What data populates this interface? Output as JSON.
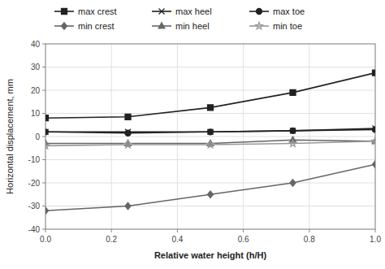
{
  "chart_data": {
    "type": "line",
    "xlabel": "Relative water height (h/H)",
    "ylabel": "Horizontal displacement, mm",
    "x": [
      0,
      0.25,
      0.5,
      0.75,
      1.0
    ],
    "series": [
      {
        "name": "max crest",
        "color": "#222222",
        "marker": "square",
        "values": [
          8,
          8.5,
          12.5,
          19,
          27.5
        ]
      },
      {
        "name": "max heel",
        "color": "#222222",
        "marker": "x",
        "values": [
          2,
          2,
          2,
          2.5,
          3.5
        ]
      },
      {
        "name": "max toe",
        "color": "#222222",
        "marker": "circle",
        "values": [
          2,
          1.5,
          2,
          2.5,
          3.0
        ]
      },
      {
        "name": "min crest",
        "color": "#666666",
        "marker": "diamond",
        "values": [
          -32,
          -30,
          -25,
          -20,
          -12
        ]
      },
      {
        "name": "min heel",
        "color": "#666666",
        "marker": "triangle",
        "values": [
          -3,
          -3,
          -3,
          -1.5,
          -2
        ]
      },
      {
        "name": "min toe",
        "color": "#999999",
        "marker": "star",
        "values": [
          -4,
          -3.5,
          -3.5,
          -3,
          -2
        ]
      }
    ],
    "xlim": [
      0,
      1.0
    ],
    "ylim": [
      -40,
      40
    ],
    "xticks": [
      {
        "value": 0,
        "label": "0.0"
      },
      0.2,
      0.4,
      0.6,
      0.8,
      {
        "value": 1.0,
        "label": "1.0"
      }
    ],
    "yticks": [
      -40,
      -30,
      -20,
      -10,
      0,
      10,
      20,
      30,
      40
    ],
    "grid": true,
    "legend": "top"
  }
}
